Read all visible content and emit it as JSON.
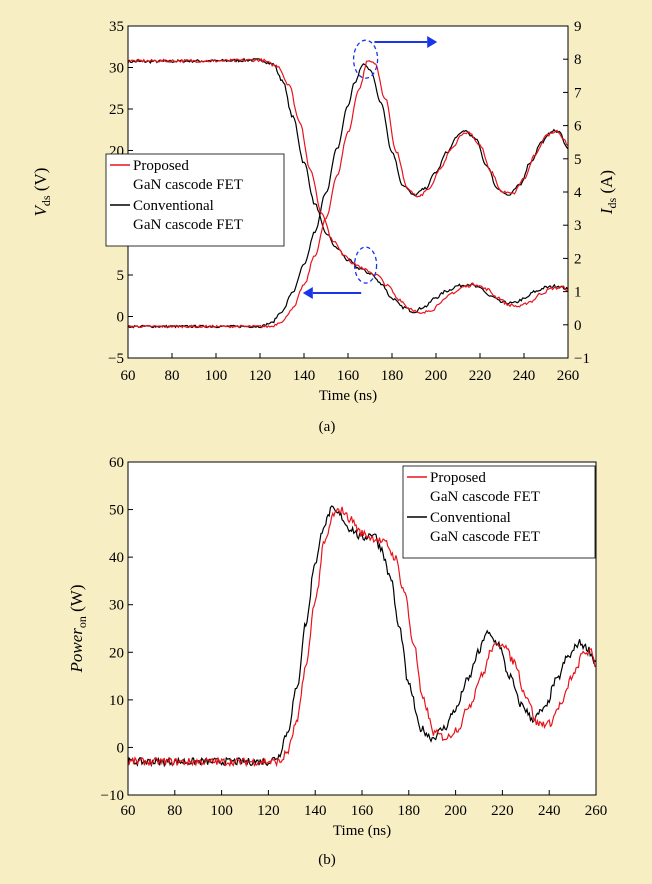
{
  "chart_data": [
    {
      "type": "line",
      "panel_label": "(a)",
      "xlabel": "Time (ns)",
      "ylabel_left": {
        "main": "V",
        "sub": "ds",
        "unit": " (V)"
      },
      "ylabel_right": {
        "main": "I",
        "sub": "ds",
        "unit": " (A)"
      },
      "xlim": [
        60,
        260
      ],
      "ylim_left": [
        -5,
        35
      ],
      "ylim_right": [
        -1,
        9
      ],
      "x_ticks": [
        60,
        80,
        100,
        120,
        140,
        160,
        180,
        200,
        220,
        240,
        260
      ],
      "y_ticks_left": [
        -5,
        0,
        5,
        10,
        15,
        20,
        25,
        30,
        35
      ],
      "y_ticks_right": [
        -1,
        0,
        1,
        2,
        3,
        4,
        5,
        6,
        7,
        8,
        9
      ],
      "legend": {
        "placement": "middle-left",
        "entries": [
          {
            "line1": "Proposed",
            "line2": "GaN cascode FET",
            "color": "#e8141c"
          },
          {
            "line1": "Conventional",
            "line2": "GaN cascode FET",
            "color": "#000000"
          }
        ]
      },
      "series": [
        {
          "quantity": "Vds",
          "axis": "left",
          "color": "#000000",
          "x": [
            60,
            100,
            120,
            126,
            130,
            135,
            140,
            145,
            150,
            155,
            160,
            165,
            170,
            175,
            180,
            185,
            190,
            195,
            200,
            205,
            210,
            215,
            220,
            225,
            230,
            235,
            240,
            245,
            250,
            255,
            260
          ],
          "y": [
            30.7,
            30.8,
            30.9,
            30.4,
            28.5,
            24,
            18.5,
            13.5,
            10,
            8.2,
            6.8,
            5.8,
            5.2,
            4,
            2.2,
            1.1,
            0.6,
            1.2,
            2.3,
            3.1,
            3.7,
            3.9,
            3.4,
            2.4,
            1.7,
            1.6,
            2.1,
            3,
            3.5,
            3.7,
            3.3
          ]
        },
        {
          "quantity": "Vds",
          "axis": "left",
          "color": "#e8141c",
          "x": [
            60,
            100,
            120,
            128,
            133,
            138,
            143,
            148,
            153,
            158,
            163,
            168,
            173,
            178,
            183,
            188,
            193,
            198,
            203,
            208,
            213,
            218,
            223,
            228,
            233,
            238,
            243,
            248,
            253,
            258,
            260
          ],
          "y": [
            30.8,
            30.8,
            30.9,
            30.2,
            28,
            23.5,
            17.5,
            12.5,
            9.2,
            7.5,
            6.3,
            5.6,
            5,
            3.7,
            2.1,
            1,
            0.3,
            0.8,
            1.9,
            2.9,
            3.6,
            3.9,
            3.3,
            2.3,
            1.4,
            1.2,
            1.8,
            2.8,
            3.4,
            3.5,
            3.2
          ]
        },
        {
          "quantity": "Ids",
          "axis": "right",
          "color": "#000000",
          "x": [
            60,
            120,
            125,
            130,
            135,
            140,
            145,
            150,
            155,
            160,
            163,
            167,
            170,
            175,
            180,
            185,
            190,
            195,
            200,
            205,
            210,
            213,
            218,
            223,
            228,
            233,
            238,
            243,
            248,
            253,
            256,
            260
          ],
          "y": [
            -0.05,
            -0.05,
            0.05,
            0.4,
            1,
            1.8,
            2.8,
            4,
            5.3,
            6.6,
            7.3,
            7.85,
            7.7,
            6.7,
            5.2,
            4.2,
            3.9,
            4.1,
            4.6,
            5.2,
            5.7,
            5.85,
            5.6,
            4.8,
            4.1,
            3.9,
            4.2,
            4.9,
            5.5,
            5.85,
            5.8,
            5.3
          ]
        },
        {
          "quantity": "Ids",
          "axis": "right",
          "color": "#e8141c",
          "x": [
            60,
            125,
            130,
            135,
            140,
            145,
            150,
            155,
            160,
            165,
            169,
            172,
            177,
            182,
            187,
            192,
            197,
            202,
            207,
            212,
            215,
            220,
            225,
            230,
            235,
            240,
            245,
            250,
            255,
            258,
            260
          ],
          "y": [
            -0.05,
            -0.05,
            0.1,
            0.5,
            1.2,
            2.1,
            3.2,
            4.5,
            5.8,
            7.1,
            7.95,
            7.9,
            6.8,
            5.2,
            4.1,
            3.85,
            4.1,
            4.7,
            5.3,
            5.75,
            5.8,
            5.4,
            4.6,
            4,
            3.95,
            4.4,
            5.1,
            5.7,
            5.85,
            5.6,
            5.4
          ]
        }
      ]
    },
    {
      "type": "line",
      "panel_label": "(b)",
      "xlabel": "Time (ns)",
      "ylabel": {
        "main": "Power",
        "sub": "on",
        "unit": " (W)"
      },
      "xlim": [
        60,
        260
      ],
      "ylim": [
        -10,
        60
      ],
      "x_ticks": [
        60,
        80,
        100,
        120,
        140,
        160,
        180,
        200,
        220,
        240,
        260
      ],
      "y_ticks": [
        -10,
        0,
        10,
        20,
        30,
        40,
        50,
        60
      ],
      "legend": {
        "placement": "top-right",
        "entries": [
          {
            "line1": "Proposed",
            "line2": "GaN cascode FET",
            "color": "#e8141c"
          },
          {
            "line1": "Conventional",
            "line2": "GaN cascode FET",
            "color": "#000000"
          }
        ]
      },
      "series": [
        {
          "color": "#000000",
          "x": [
            60,
            120,
            124,
            128,
            132,
            136,
            140,
            144,
            147,
            150,
            155,
            160,
            165,
            168,
            172,
            176,
            180,
            185,
            190,
            195,
            200,
            205,
            210,
            213,
            218,
            223,
            228,
            233,
            238,
            243,
            248,
            253,
            256,
            260
          ],
          "y": [
            -3,
            -3,
            -2,
            3,
            12,
            26,
            39,
            47,
            50,
            49,
            46,
            44,
            45,
            42,
            36,
            25,
            13,
            4,
            2,
            4,
            8,
            14,
            20,
            24,
            22,
            15,
            9,
            6,
            8,
            14,
            19,
            22,
            21,
            18
          ]
        },
        {
          "color": "#e8141c",
          "x": [
            60,
            125,
            128,
            132,
            136,
            140,
            144,
            148,
            151,
            155,
            160,
            165,
            170,
            174,
            178,
            182,
            186,
            191,
            196,
            201,
            206,
            211,
            216,
            220,
            225,
            230,
            235,
            240,
            245,
            250,
            255,
            258,
            260
          ],
          "y": [
            -3,
            -3,
            -1,
            5,
            17,
            31,
            43,
            49,
            50,
            48,
            45,
            44,
            43,
            40,
            33,
            22,
            10,
            3,
            2,
            4,
            9,
            15,
            21,
            22,
            18,
            11,
            5,
            5,
            9,
            15,
            20,
            20,
            17
          ]
        }
      ]
    }
  ]
}
